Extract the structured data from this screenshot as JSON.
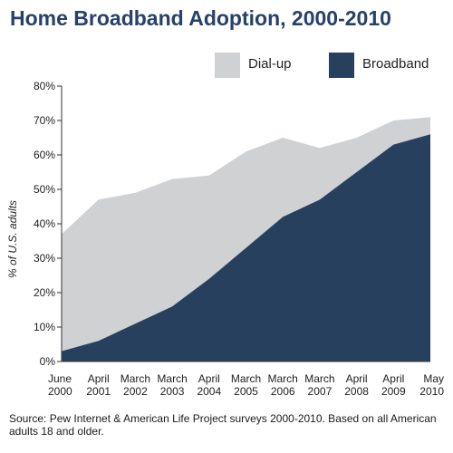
{
  "chart_data": {
    "type": "area",
    "title": "Home Broadband Adoption, 2000-2010",
    "ylabel": "% of U.S. adults",
    "xlabel": "",
    "x": [
      [
        "June",
        "2000"
      ],
      [
        "April",
        "2001"
      ],
      [
        "March",
        "2002"
      ],
      [
        "March",
        "2003"
      ],
      [
        "April",
        "2004"
      ],
      [
        "March",
        "2005"
      ],
      [
        "March",
        "2006"
      ],
      [
        "March",
        "2007"
      ],
      [
        "April",
        "2008"
      ],
      [
        "April",
        "2009"
      ],
      [
        "May",
        "2010"
      ]
    ],
    "ylim": [
      0,
      80
    ],
    "yticks": [
      "0%",
      "10%",
      "20%",
      "30%",
      "40%",
      "50%",
      "60%",
      "70%",
      "80%"
    ],
    "stacked": true,
    "series": [
      {
        "name": "Broadband",
        "color": "#27405e",
        "values": [
          3,
          6,
          11,
          16,
          24,
          33,
          42,
          47,
          55,
          63,
          66
        ]
      },
      {
        "name": "Dial-up",
        "color": "#cfd1d3",
        "values": [
          34,
          41,
          38,
          37,
          30,
          28,
          23,
          15,
          10,
          7,
          5
        ]
      }
    ],
    "legend": "top-right",
    "grid": false
  },
  "legend": {
    "dialup": "Dial-up",
    "broadband": "Broadband"
  },
  "source": "Source: Pew Internet & American Life Project surveys 2000-2010. Based on all American adults 18 and older."
}
